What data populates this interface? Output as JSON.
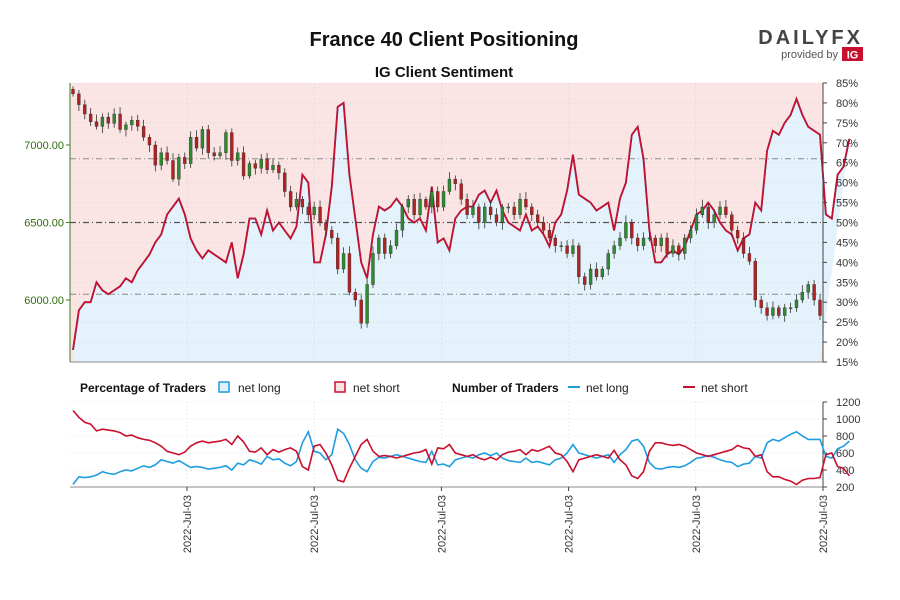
{
  "title": "France 40 Client Positioning",
  "subtitle": "IG Client Sentiment",
  "logo": {
    "brand": "DAILYFX",
    "provided_by": "provided by",
    "ig": "IG"
  },
  "legend": {
    "pct_heading": "Percentage of Traders",
    "pct_long": "net long",
    "pct_short": "net short",
    "num_heading": "Number of Traders",
    "num_long": "net long",
    "num_short": "net short"
  },
  "chart_data": [
    {
      "type": "candlestick",
      "name": "price",
      "y_ticks": [
        "6000.00",
        "6500.00",
        "7000.00"
      ],
      "ylim": [
        5600,
        7400
      ],
      "x_labels": [
        "2022-Jul-03",
        "2022-Jul-03",
        "2022-Jul-03",
        "2022-Jul-03",
        "2022-Jul-03",
        "2022-Jul-03"
      ],
      "close": [
        7330,
        7260,
        7200,
        7150,
        7120,
        7180,
        7140,
        7200,
        7100,
        7130,
        7160,
        7120,
        7050,
        7000,
        6870,
        6950,
        6900,
        6780,
        6920,
        6880,
        7050,
        6980,
        7100,
        6950,
        6930,
        6950,
        7080,
        6900,
        6950,
        6800,
        6880,
        6850,
        6910,
        6840,
        6870,
        6820,
        6700,
        6600,
        6650,
        6600,
        6550,
        6600,
        6500,
        6450,
        6400,
        6200,
        6300,
        6050,
        6000,
        5850,
        6100,
        6300,
        6400,
        6300,
        6350,
        6450,
        6600,
        6650,
        6550,
        6650,
        6600,
        6700,
        6600,
        6700,
        6780,
        6750,
        6650,
        6550,
        6600,
        6500,
        6600,
        6550,
        6500,
        6600,
        6600,
        6550,
        6650,
        6600,
        6550,
        6500,
        6450,
        6400,
        6350,
        6350,
        6300,
        6350,
        6150,
        6100,
        6200,
        6150,
        6200,
        6300,
        6350,
        6400,
        6500,
        6400,
        6350,
        6400,
        6400,
        6350,
        6400,
        6300,
        6350,
        6300,
        6400,
        6450,
        6550,
        6600,
        6500,
        6550,
        6600,
        6550,
        6450,
        6400,
        6300,
        6250,
        6000,
        5950,
        5900,
        5950,
        5900,
        5950,
        5950,
        6000,
        6050,
        6100,
        6000,
        5900
      ],
      "yr": [
        15,
        85
      ],
      "pct_ticks": [
        "15%",
        "20%",
        "25%",
        "30%",
        "35%",
        "40%",
        "45%",
        "50%",
        "55%",
        "60%",
        "65%",
        "70%",
        "75%",
        "80%",
        "85%"
      ],
      "pct_ref_lines": [
        32,
        50,
        66
      ],
      "pct_long": [
        18,
        28,
        30,
        30,
        35,
        33,
        32,
        33,
        34,
        36,
        35,
        38,
        40,
        42,
        45,
        47,
        52,
        54,
        56,
        52,
        46,
        43,
        41,
        43,
        42,
        41,
        40,
        45,
        36,
        42,
        51,
        51,
        47,
        53,
        48,
        50,
        48,
        46,
        49,
        62,
        60,
        40,
        40,
        47,
        59,
        79,
        80,
        62,
        51,
        40,
        36,
        47,
        54,
        53,
        54,
        56,
        54,
        51,
        50,
        51,
        48,
        59,
        45,
        46,
        43,
        51,
        53,
        54,
        54,
        57,
        58,
        55,
        58,
        53,
        50,
        49,
        48,
        52,
        48,
        49,
        47,
        44,
        50,
        52,
        58,
        67,
        57,
        56,
        55,
        53,
        54,
        55,
        48,
        56,
        60,
        72,
        74,
        66,
        48,
        40,
        40,
        42,
        43,
        42,
        44,
        48,
        52,
        53,
        55,
        53,
        50,
        48,
        47,
        43,
        46,
        47,
        55,
        53,
        68,
        73,
        72,
        75,
        77,
        81,
        77,
        74,
        73,
        72,
        52,
        51,
        62,
        64,
        71
      ],
      "pct_short": [
        82,
        72,
        70,
        70,
        65,
        67,
        68,
        67,
        66,
        64,
        65,
        62,
        60,
        58,
        55,
        53,
        48,
        46,
        44,
        48,
        54,
        57,
        59,
        57,
        58,
        59,
        60,
        55,
        64,
        58,
        49,
        49,
        53,
        47,
        52,
        50,
        52,
        54,
        51,
        38,
        40,
        60,
        60,
        53,
        41,
        21,
        20,
        38,
        49,
        60,
        64,
        53,
        46,
        47,
        46,
        44,
        46,
        49,
        50,
        49,
        52,
        41,
        55,
        54,
        57,
        49,
        47,
        46,
        46,
        43,
        42,
        45,
        42,
        47,
        50,
        51,
        52,
        48,
        52,
        51,
        53,
        56,
        50,
        48,
        42,
        33,
        43,
        44,
        45,
        47,
        46,
        45,
        52,
        44,
        40,
        28,
        26,
        34,
        52,
        60,
        60,
        58,
        57,
        58,
        56,
        52,
        48,
        47,
        45,
        47,
        50,
        52,
        53,
        57,
        54,
        53,
        45,
        47,
        32,
        27,
        28,
        25,
        23,
        19,
        23,
        26,
        27,
        28,
        48,
        49,
        38,
        36,
        29
      ]
    },
    {
      "type": "line",
      "name": "Number of Traders",
      "ylim": [
        200,
        1200
      ],
      "y_ticks": [
        "200",
        "400",
        "600",
        "800",
        "1000",
        "1200"
      ],
      "series": [
        {
          "name": "net long",
          "color": "#1f9de0",
          "values": [
            230,
            320,
            310,
            320,
            340,
            380,
            360,
            350,
            380,
            400,
            390,
            420,
            450,
            430,
            460,
            520,
            500,
            480,
            510,
            470,
            430,
            440,
            430,
            410,
            420,
            430,
            450,
            400,
            480,
            460,
            520,
            500,
            470,
            560,
            520,
            530,
            480,
            450,
            500,
            720,
            850,
            620,
            600,
            520,
            580,
            880,
            830,
            700,
            520,
            420,
            380,
            500,
            550,
            540,
            560,
            580,
            560,
            540,
            520,
            500,
            490,
            620,
            460,
            470,
            440,
            520,
            540,
            560,
            540,
            580,
            600,
            570,
            600,
            540,
            510,
            500,
            490,
            540,
            490,
            500,
            480,
            460,
            520,
            540,
            600,
            700,
            600,
            580,
            560,
            540,
            560,
            580,
            490,
            580,
            640,
            740,
            760,
            680,
            490,
            420,
            410,
            430,
            440,
            430,
            450,
            490,
            540,
            550,
            570,
            550,
            520,
            500,
            490,
            440,
            470,
            480,
            560,
            540,
            720,
            760,
            740,
            780,
            820,
            850,
            800,
            760,
            760,
            760,
            560,
            540,
            650,
            680,
            740
          ]
        },
        {
          "name": "net short",
          "color": "#c8102e",
          "values": [
            1100,
            1020,
            960,
            940,
            860,
            880,
            870,
            860,
            840,
            800,
            810,
            780,
            760,
            750,
            720,
            680,
            620,
            600,
            580,
            610,
            680,
            720,
            740,
            720,
            730,
            740,
            760,
            700,
            800,
            730,
            620,
            610,
            660,
            580,
            640,
            610,
            640,
            660,
            620,
            440,
            400,
            680,
            700,
            600,
            460,
            280,
            260,
            420,
            560,
            700,
            760,
            620,
            560,
            570,
            560,
            540,
            560,
            580,
            600,
            610,
            640,
            470,
            660,
            650,
            700,
            600,
            580,
            560,
            580,
            540,
            520,
            550,
            520,
            580,
            610,
            620,
            640,
            580,
            640,
            620,
            650,
            680,
            600,
            580,
            500,
            380,
            520,
            540,
            560,
            580,
            560,
            540,
            630,
            520,
            460,
            330,
            300,
            380,
            620,
            720,
            720,
            700,
            690,
            700,
            680,
            640,
            600,
            580,
            560,
            580,
            600,
            620,
            640,
            690,
            660,
            650,
            560,
            580,
            380,
            320,
            320,
            290,
            270,
            230,
            280,
            300,
            300,
            310,
            580,
            600,
            440,
            420,
            330
          ]
        }
      ]
    }
  ]
}
